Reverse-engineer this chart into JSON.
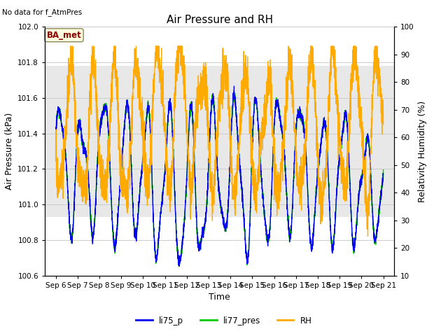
{
  "title": "Air Pressure and RH",
  "top_left_text": "No data for f_AtmPres",
  "annotation_box": "BA_met",
  "xlabel": "Time",
  "ylabel_left": "Air Pressure (kPa)",
  "ylabel_right": "Relativity Humidity (%)",
  "xlim_days": [
    5.5,
    21.5
  ],
  "ylim_left": [
    100.6,
    102.0
  ],
  "ylim_right": [
    10,
    100
  ],
  "yticks_left": [
    100.6,
    100.8,
    101.0,
    101.2,
    101.4,
    101.6,
    101.8,
    102.0
  ],
  "yticks_right": [
    10,
    20,
    30,
    40,
    50,
    60,
    70,
    80,
    90,
    100
  ],
  "xtick_labels": [
    "Sep 6",
    "Sep 7",
    "Sep 8",
    "Sep 9",
    "Sep 10",
    "Sep 11",
    "Sep 12",
    "Sep 13",
    "Sep 14",
    "Sep 15",
    "Sep 16",
    "Sep 17",
    "Sep 18",
    "Sep 19",
    "Sep 20",
    "Sep 21"
  ],
  "xtick_positions": [
    6,
    7,
    8,
    9,
    10,
    11,
    12,
    13,
    14,
    15,
    16,
    17,
    18,
    19,
    20,
    21
  ],
  "color_li75": "#0000ee",
  "color_li77": "#00cc00",
  "color_rh": "#ffaa00",
  "color_grid": "#cccccc",
  "color_band_outer": "#e8e8e8",
  "legend_labels": [
    "li75_p",
    "li77_pres",
    "RH"
  ],
  "background_color": "#ffffff",
  "title_fontsize": 11,
  "axis_fontsize": 9,
  "tick_fontsize": 7.5,
  "band_low": 100.93,
  "band_high": 101.78
}
